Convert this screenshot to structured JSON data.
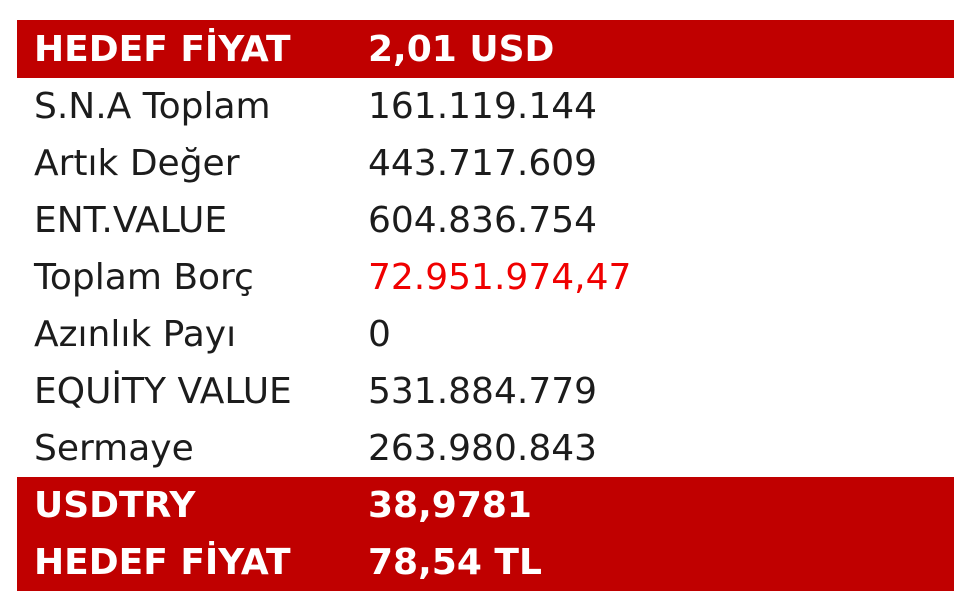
{
  "header": {
    "label": "HEDEF FİYAT",
    "value": "2,01 USD"
  },
  "rows": [
    {
      "label": "S.N.A Toplam",
      "value": "161.119.144"
    },
    {
      "label": "Artık Değer",
      "value": "443.717.609"
    },
    {
      "label": "ENT.VALUE",
      "value": "604.836.754"
    },
    {
      "label": "Toplam Borç",
      "value": "72.951.974,47"
    },
    {
      "label": "Azınlık Payı",
      "value": "0"
    },
    {
      "label": "EQUİTY VALUE",
      "value": "531.884.779"
    },
    {
      "label": "Sermaye",
      "value": "263.980.843"
    }
  ],
  "footer": [
    {
      "label": "USDTRY",
      "value": "38,9781"
    },
    {
      "label": "HEDEF FİYAT",
      "value": "78,54 TL"
    }
  ],
  "colors": {
    "highlight_background": "#c00000",
    "negative_value": "#f00000",
    "text": "#1c1c1c"
  }
}
